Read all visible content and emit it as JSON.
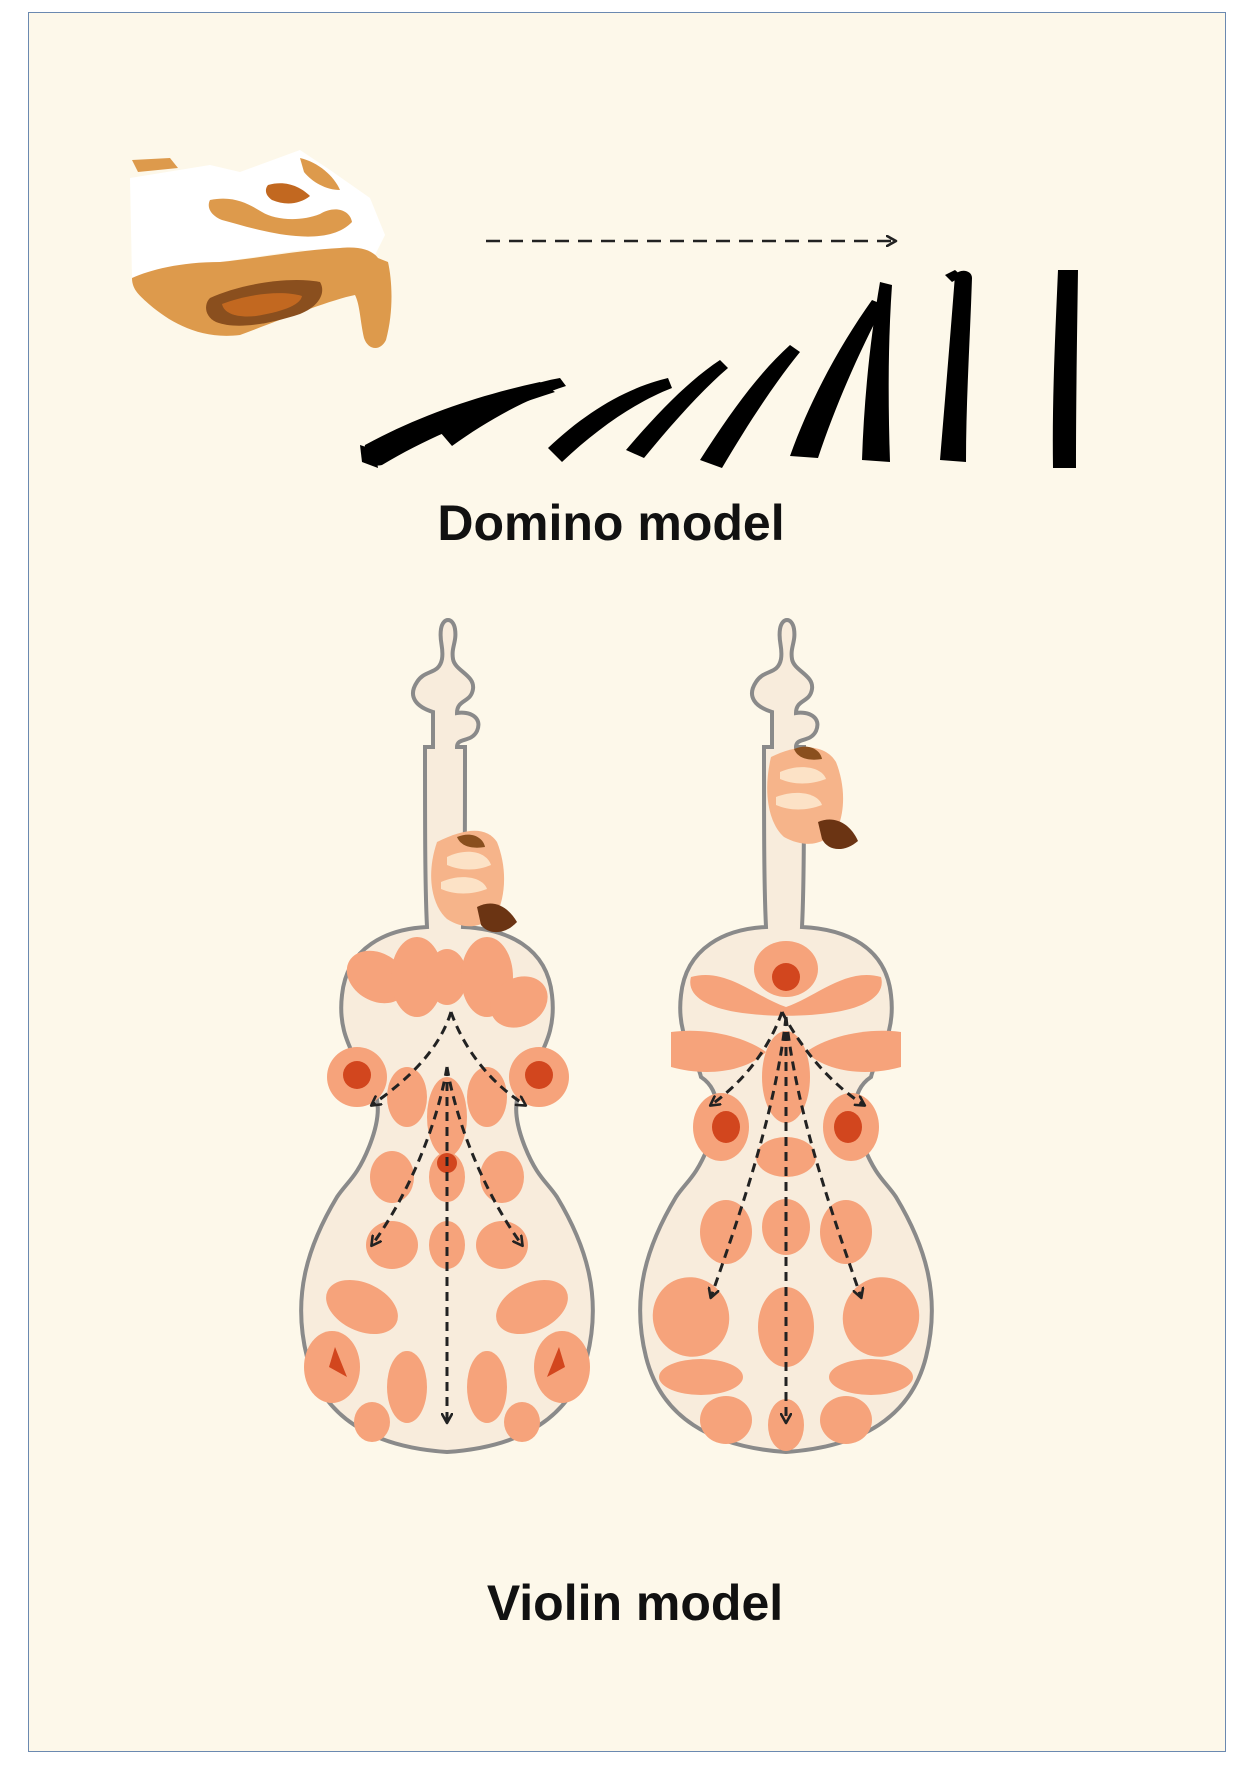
{
  "labels": {
    "domino_model": "Domino model",
    "violin_model": "Violin model"
  },
  "colors": {
    "background": "#fdf8ea",
    "border": "#6b89b0",
    "domino": "#000000",
    "hand_light": "#f5a26b",
    "hand_mid": "#dd9a4c",
    "hand_dark": "#8a4f1e",
    "violin_body": "#f8ecdc",
    "violin_outline": "#8a8a8a",
    "region": "#f6a37b",
    "hotspot": "#d2461e",
    "arrow": "#222222"
  },
  "icons": [
    "hand-icon",
    "domino-chain-icon",
    "violin-icon",
    "arrow-icon"
  ]
}
